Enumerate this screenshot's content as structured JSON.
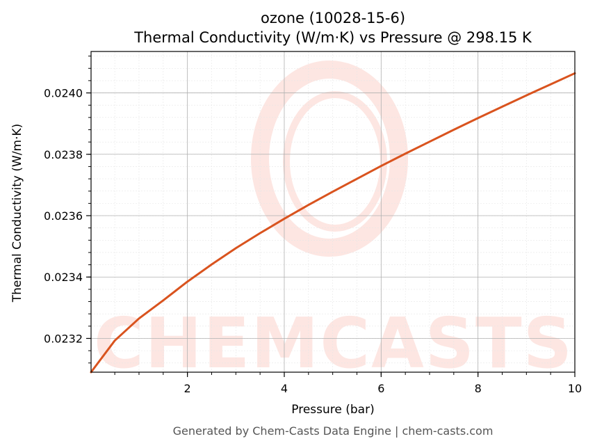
{
  "chart_data": {
    "type": "line",
    "title": "ozone (10028-15-6)",
    "subtitle": "Thermal Conductivity (W/m·K) vs Pressure @ 298.15 K",
    "xlabel": "Pressure (bar)",
    "ylabel": "Thermal Conductivity (W/m·K)",
    "xlim": [
      0.01,
      10
    ],
    "ylim": [
      0.02309,
      0.024135
    ],
    "xticks": [
      2,
      4,
      6,
      8,
      10
    ],
    "xtick_labels": [
      "2",
      "4",
      "6",
      "8",
      "10"
    ],
    "yticks": [
      0.0232,
      0.0234,
      0.0236,
      0.0238,
      0.024
    ],
    "ytick_labels": [
      "0.0232",
      "0.0234",
      "0.0236",
      "0.0238",
      "0.0240"
    ],
    "grid": true,
    "minor_grid": true,
    "line_color": "#d9531e",
    "series": [
      {
        "x": [
          0.01,
          0.5,
          1.0,
          1.5,
          2.0,
          2.5,
          3.0,
          3.5,
          4.0,
          4.5,
          5.0,
          5.5,
          6.0,
          6.5,
          7.0,
          7.5,
          8.0,
          8.5,
          9.0,
          9.5,
          10.0
        ],
        "values": [
          0.02309,
          0.023193,
          0.023265,
          0.023324,
          0.023385,
          0.023441,
          0.023494,
          0.023543,
          0.02359,
          0.023635,
          0.023678,
          0.02372,
          0.023762,
          0.023802,
          0.023841,
          0.02388,
          0.023918,
          0.023955,
          0.023992,
          0.024028,
          0.024064
        ]
      }
    ]
  },
  "watermark": {
    "text": "CHEMCASTS",
    "color": "#fde6e2"
  },
  "footer": {
    "text": "Generated by Chem-Casts Data Engine | chem-casts.com"
  }
}
